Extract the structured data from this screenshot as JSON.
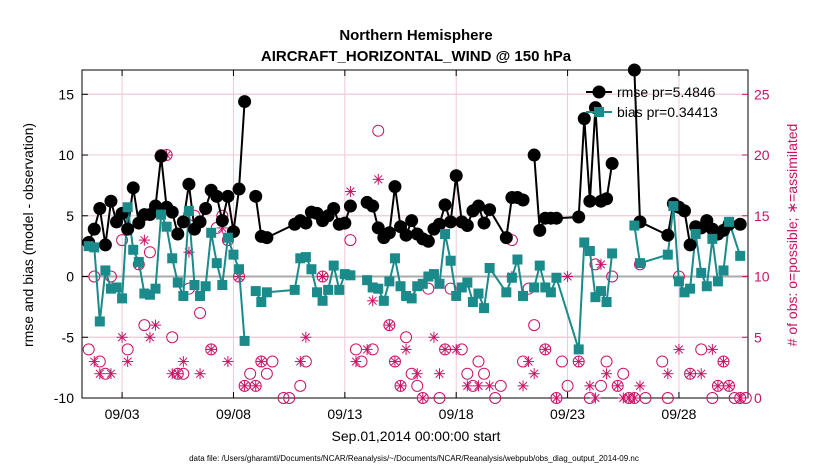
{
  "chart_data": {
    "type": "line",
    "title": "Northern Hemisphere",
    "subtitle": "AIRCRAFT_HORIZONTAL_WIND @ 150 hPa",
    "xlabel": "Sep.01,2014 00:00:00 start",
    "ylabel_left": "rmse and bias (model - observation)",
    "ylabel_right": "# of obs: o=possible; ∗=assimilated",
    "footnote": "data file: /Users/gharamti/Documents/NCAR/Reanalysis/~/Documents/NCAR/Reanalysis/webpub/obs_diag_output_2014-09.nc",
    "x_ticks": [
      "09/03",
      "09/08",
      "09/13",
      "09/18",
      "09/23",
      "09/28"
    ],
    "x_tick_days": [
      3,
      8,
      13,
      18,
      23,
      28
    ],
    "xlim_days": [
      1.2,
      31.1
    ],
    "ylim_left": [
      -10,
      17
    ],
    "yticks_left": [
      -10,
      -5,
      0,
      5,
      10,
      15
    ],
    "ylim_right": [
      0,
      27
    ],
    "yticks_right": [
      0,
      5,
      10,
      15,
      20,
      25
    ],
    "legend_position": "top-right",
    "legend": [
      "rmse pr=5.4846",
      "bias pr=0.34413"
    ],
    "colors": {
      "rmse": "#000000",
      "bias": "#1a8a8a",
      "obs": "#cc1166",
      "zero_line": "#aaaaaa",
      "grid": "#f0c8d8"
    },
    "series": [
      {
        "name": "rmse pr=5.4846",
        "x": [
          1.5,
          1.75,
          2.0,
          2.25,
          2.5,
          2.75,
          3.0,
          3.25,
          3.5,
          3.75,
          4.0,
          4.25,
          4.5,
          4.75,
          5.0,
          5.25,
          5.5,
          5.75,
          6.0,
          6.25,
          6.5,
          6.75,
          7.0,
          7.25,
          7.5,
          7.75,
          8.0,
          8.25,
          8.5,
          8.75,
          9.0,
          9.25,
          9.5,
          10.75,
          11.0,
          11.25,
          11.5,
          11.75,
          12.0,
          12.25,
          12.5,
          12.75,
          13.0,
          13.25,
          13.5,
          13.75,
          14.0,
          14.25,
          14.5,
          14.75,
          15.0,
          15.25,
          15.5,
          15.75,
          16.0,
          16.25,
          16.5,
          16.75,
          17.0,
          17.25,
          17.5,
          17.75,
          18.0,
          18.25,
          18.5,
          18.75,
          19.0,
          19.25,
          19.5,
          20.25,
          20.5,
          20.75,
          21.0,
          21.25,
          21.5,
          21.75,
          22.0,
          22.25,
          22.5,
          23.5,
          23.75,
          24.0,
          24.25,
          24.5,
          24.75,
          25.0,
          25.25,
          26.0,
          26.25,
          27.5,
          27.75,
          28.0,
          28.25,
          28.5,
          28.75,
          29.0,
          29.25,
          29.5,
          29.75,
          30.0,
          30.25,
          30.75
        ],
        "values": [
          2.8,
          3.9,
          5.6,
          2.6,
          6.2,
          4.5,
          5.2,
          3.9,
          7.3,
          4.4,
          5.1,
          5.1,
          5.8,
          9.9,
          5.7,
          5.3,
          3.5,
          4.5,
          7.6,
          3.9,
          4.5,
          5.6,
          7.1,
          6.6,
          4.6,
          6.6,
          3.7,
          7.2,
          14.4,
          null,
          6.6,
          3.3,
          3.2,
          4.3,
          4.6,
          4.4,
          5.3,
          5.2,
          4.6,
          5.0,
          5.6,
          4.3,
          4.4,
          5.8,
          null,
          null,
          6.1,
          5.8,
          4.0,
          3.2,
          3.6,
          7.4,
          4.1,
          3.4,
          4.6,
          3.5,
          3.1,
          2.9,
          3.9,
          4.3,
          5.9,
          4.5,
          8.3,
          4.5,
          4.2,
          5.4,
          5.8,
          4.4,
          5.5,
          3.2,
          6.5,
          6.5,
          6.3,
          null,
          10.0,
          3.8,
          4.8,
          4.8,
          4.8,
          4.9,
          13.0,
          6.2,
          13.9,
          6.2,
          6.4,
          9.3,
          null,
          17.0,
          4.5,
          3.4,
          6.0,
          5.7,
          5.4,
          2.6,
          4.1,
          4.0,
          4.6,
          3.9,
          3.5,
          3.8,
          4.3,
          4.3
        ],
        "marker": "filled circle",
        "color": "#000000"
      },
      {
        "name": "bias pr=0.34413",
        "x": [
          1.5,
          1.75,
          2.0,
          2.25,
          2.5,
          2.75,
          3.0,
          3.25,
          3.5,
          3.75,
          4.0,
          4.25,
          4.5,
          4.75,
          5.0,
          5.25,
          5.5,
          5.75,
          6.0,
          6.25,
          6.5,
          6.75,
          7.0,
          7.25,
          7.5,
          7.75,
          8.0,
          8.25,
          8.5,
          8.75,
          9.0,
          9.25,
          9.5,
          10.75,
          11.0,
          11.25,
          11.5,
          11.75,
          12.0,
          12.25,
          12.5,
          12.75,
          13.0,
          13.25,
          13.5,
          13.75,
          14.0,
          14.25,
          14.5,
          14.75,
          15.0,
          15.25,
          15.5,
          15.75,
          16.0,
          16.25,
          16.5,
          16.75,
          17.0,
          17.25,
          17.5,
          17.75,
          18.0,
          18.25,
          18.5,
          18.75,
          19.0,
          19.25,
          19.5,
          20.25,
          20.5,
          20.75,
          21.0,
          21.25,
          21.5,
          21.75,
          22.0,
          22.25,
          22.5,
          23.5,
          23.75,
          24.0,
          24.25,
          24.5,
          24.75,
          25.0,
          25.25,
          26.0,
          26.25,
          27.5,
          27.75,
          28.0,
          28.25,
          28.5,
          28.75,
          29.0,
          29.25,
          29.5,
          29.75,
          30.0,
          30.25,
          30.75
        ],
        "values": [
          2.5,
          2.4,
          -3.7,
          0.5,
          -1.0,
          -0.9,
          -1.8,
          5.7,
          2.2,
          1.2,
          -1.4,
          -1.5,
          -1.0,
          5.1,
          4.1,
          1.5,
          -0.5,
          -1.6,
          5.4,
          -0.7,
          -1.6,
          -0.8,
          3.6,
          1.1,
          -0.7,
          3.2,
          1.8,
          0.6,
          -5.3,
          null,
          -1.2,
          -2.1,
          -1.3,
          -1.1,
          1.5,
          1.6,
          0.6,
          -1.3,
          -2.0,
          -1.1,
          0.9,
          -1.1,
          0.2,
          0.1,
          null,
          null,
          -0.3,
          -0.9,
          -1.0,
          -2.0,
          -0.4,
          1.5,
          -0.8,
          -1.6,
          -1.8,
          -0.8,
          -0.6,
          0.0,
          0.2,
          -0.6,
          3.5,
          1.3,
          -1.6,
          -0.9,
          -0.5,
          -2.1,
          -1.4,
          -2.6,
          0.7,
          -1.3,
          -0.1,
          1.4,
          -1.6,
          null,
          -0.9,
          0.9,
          -0.9,
          -1.3,
          -0.1,
          -6.0,
          2.8,
          2.1,
          -1.7,
          -1.2,
          -2.1,
          1.9,
          null,
          4.2,
          1.1,
          1.8,
          5.8,
          -0.4,
          -1.3,
          -1.0,
          3.5,
          0.3,
          -0.8,
          3.1,
          -0.4,
          0.5,
          4.5,
          1.7
        ],
        "marker": "filled square",
        "color": "#1a8a8a"
      },
      {
        "name": "",
        "axis": "right",
        "marker": "open circle",
        "x": [
          1.5,
          1.75,
          2.0,
          2.25,
          2.5,
          3.0,
          3.25,
          3.75,
          4.0,
          4.25,
          4.75,
          5.0,
          5.25,
          5.5,
          5.75,
          6.0,
          6.25,
          6.5,
          7.0,
          7.25,
          7.5,
          7.75,
          8.25,
          8.5,
          8.75,
          9.0,
          9.25,
          9.5,
          9.75,
          10.25,
          10.5,
          11.0,
          11.25,
          12.0,
          12.25,
          13.25,
          13.5,
          13.75,
          14.25,
          14.5,
          15.0,
          15.25,
          15.5,
          15.75,
          16.0,
          16.25,
          16.5,
          16.75,
          17.25,
          17.5,
          17.75,
          18.25,
          18.5,
          18.75,
          19.0,
          19.25,
          19.75,
          20.0,
          20.5,
          21.0,
          21.25,
          21.5,
          22.0,
          22.5,
          22.75,
          23.0,
          23.5,
          24.0,
          24.25,
          24.5,
          24.75,
          25.0,
          25.25,
          25.5,
          25.75,
          26.0,
          26.25,
          26.5,
          27.25,
          27.5,
          28.0,
          28.5,
          29.0,
          29.5,
          29.75,
          30.0,
          30.25,
          30.5,
          30.75,
          31.0
        ],
        "values": [
          4,
          10,
          3,
          2,
          10,
          13,
          4,
          11,
          6,
          12,
          20,
          20,
          5,
          2,
          2,
          9,
          15,
          7,
          4,
          14,
          15,
          13,
          10,
          1,
          2,
          1,
          3,
          2,
          3,
          0,
          0,
          1,
          3,
          10,
          15,
          13,
          4,
          3,
          4,
          22,
          6,
          3,
          1,
          5,
          2,
          1,
          0,
          9,
          0,
          4,
          9,
          4,
          2,
          1,
          3,
          2,
          0,
          1,
          13,
          3,
          9,
          6,
          4,
          0,
          3,
          1,
          3,
          0,
          11,
          1,
          3,
          10,
          1,
          2,
          0,
          0,
          11,
          0,
          3,
          0,
          10,
          2,
          4,
          0,
          1,
          3,
          1,
          0,
          0,
          0
        ]
      },
      {
        "name": "",
        "axis": "right",
        "marker": "asterisk",
        "x": [
          1.75,
          2.0,
          2.5,
          3.0,
          3.25,
          3.75,
          4.0,
          4.25,
          4.5,
          5.0,
          5.25,
          5.5,
          5.75,
          6.0,
          6.5,
          7.0,
          7.5,
          7.75,
          8.25,
          8.5,
          9.0,
          9.25,
          11.0,
          11.25,
          12.0,
          12.25,
          13.25,
          13.5,
          14.0,
          14.25,
          14.5,
          15.0,
          15.25,
          15.5,
          15.75,
          16.25,
          16.5,
          17.0,
          17.25,
          17.5,
          18.0,
          18.5,
          19.0,
          19.5,
          20.5,
          21.0,
          21.25,
          21.5,
          22.0,
          22.5,
          23.0,
          23.5,
          24.0,
          24.25,
          24.5,
          24.75,
          25.25,
          25.5,
          25.75,
          26.0,
          26.25,
          27.5,
          28.0,
          28.5,
          29.0,
          29.5,
          29.75,
          30.0,
          30.25,
          30.75
        ],
        "values": [
          3,
          2,
          2,
          5,
          3,
          11,
          13,
          5,
          6,
          20,
          2,
          2,
          3,
          12,
          2,
          4,
          14,
          3,
          10,
          1,
          1,
          3,
          3,
          5,
          10,
          15,
          17,
          3,
          4,
          8,
          18,
          6,
          3,
          1,
          4,
          2,
          0,
          5,
          2,
          4,
          4,
          1,
          1,
          1,
          10,
          1,
          3,
          2,
          4,
          0,
          10,
          3,
          1,
          0,
          11,
          2,
          1,
          0,
          0,
          0,
          1,
          2,
          4,
          2,
          2,
          4,
          1,
          3,
          1,
          0
        ]
      }
    ]
  }
}
